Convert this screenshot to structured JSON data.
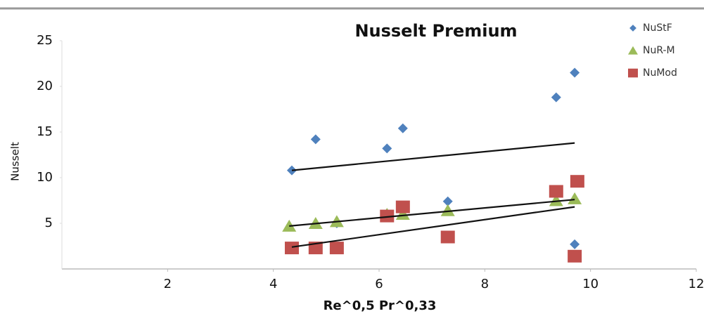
{
  "chart_data": {
    "type": "scatter",
    "title": "Nusselt Premium",
    "x_label": "Re^0,5  Pr^0,33",
    "y_label": "Nusselt",
    "xlim": [
      0,
      12
    ],
    "ylim": [
      0,
      25
    ],
    "xticks": [
      2,
      4,
      6,
      8,
      10,
      12
    ],
    "yticks": [
      5,
      10,
      15,
      20,
      25
    ],
    "grid": false,
    "legend": "upper right",
    "series": [
      {
        "name": "NuStF",
        "color": "#4f81bd",
        "marker": "diamond",
        "x": [
          4.35,
          4.8,
          5.2,
          6.15,
          6.45,
          7.3,
          9.35,
          9.7,
          9.7
        ],
        "values": [
          10.8,
          14.2,
          5.0,
          13.2,
          15.4,
          7.4,
          18.8,
          21.5,
          2.7
        ]
      },
      {
        "name": "NuR-M",
        "color": "#9bbb59",
        "marker": "triangle",
        "x": [
          4.3,
          4.8,
          5.2,
          6.15,
          6.45,
          7.3,
          9.35,
          9.7
        ],
        "values": [
          4.7,
          5.0,
          5.2,
          6.0,
          6.0,
          6.4,
          7.5,
          7.7
        ]
      },
      {
        "name": "NuMod",
        "color": "#c0504d",
        "marker": "square",
        "x": [
          4.35,
          4.8,
          5.2,
          6.15,
          6.45,
          7.3,
          9.35,
          9.7,
          9.75
        ],
        "values": [
          2.3,
          2.3,
          2.3,
          5.8,
          6.8,
          3.5,
          8.5,
          1.4,
          9.6
        ]
      }
    ],
    "trendlines": [
      {
        "x": [
          4.35,
          9.7
        ],
        "values": [
          10.8,
          13.8
        ]
      },
      {
        "x": [
          4.3,
          9.7
        ],
        "values": [
          4.7,
          7.6
        ]
      },
      {
        "x": [
          4.35,
          9.7
        ],
        "values": [
          2.4,
          6.8
        ]
      }
    ]
  }
}
